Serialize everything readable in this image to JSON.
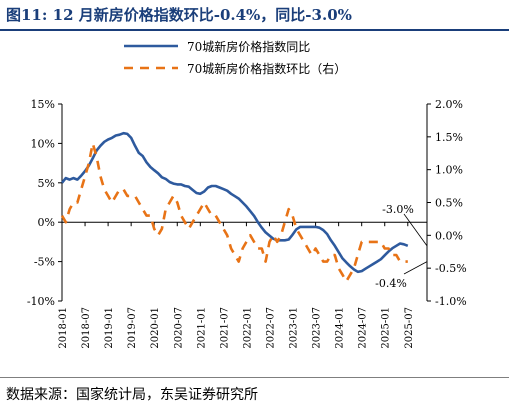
{
  "figure": {
    "title": "图11:   12 月新房价格指数环比-0.4%，同比-3.0%",
    "source": "数据来源：国家统计局，东吴证券研究所"
  },
  "chart_data": {
    "type": "line",
    "x_tick_labels": [
      "2018-01",
      "2018-07",
      "2019-01",
      "2019-07",
      "2020-01",
      "2020-07",
      "2021-01",
      "2021-07",
      "2022-01",
      "2022-07",
      "2023-01",
      "2023-07",
      "2024-01",
      "2024-07",
      "2025-01",
      "2025-07"
    ],
    "x_range": [
      "2018-01",
      "2025-12"
    ],
    "y_left": {
      "range": [
        -10,
        15
      ],
      "ticks": [
        15,
        10,
        5,
        0,
        -5,
        -10
      ],
      "tick_labels": [
        "15%",
        "10%",
        "5%",
        "0%",
        "-5%",
        "-10%"
      ]
    },
    "y_right": {
      "range": [
        -1.0,
        2.0
      ],
      "ticks": [
        2.0,
        1.5,
        1.0,
        0.5,
        0.0,
        -0.5,
        -1.0
      ],
      "tick_labels": [
        "2.0%",
        "1.5%",
        "1.0%",
        "0.5%",
        "0.0%",
        "-0.5%",
        "-1.0%"
      ]
    },
    "legend": {
      "placement": "top-center"
    },
    "grid": false,
    "annotations": [
      {
        "text": "-3.0%",
        "points_to": "2025-12",
        "axis": "left",
        "value": -3.0
      },
      {
        "text": "-0.4%",
        "points_to": "2025-12",
        "axis": "right",
        "value": -0.4
      }
    ],
    "series": [
      {
        "name": "70城新房价格指数同比",
        "axis": "left",
        "color": "#2e5a9e",
        "style": "solid",
        "start": "2018-01",
        "values": [
          5.0,
          5.6,
          5.4,
          5.6,
          5.4,
          5.9,
          6.5,
          7.2,
          8.1,
          9.1,
          9.7,
          10.2,
          10.5,
          10.7,
          11.0,
          11.1,
          11.3,
          11.2,
          10.7,
          9.7,
          8.8,
          8.4,
          7.6,
          7.0,
          6.6,
          6.2,
          5.7,
          5.5,
          5.1,
          4.9,
          4.8,
          4.8,
          4.6,
          4.5,
          4.1,
          3.7,
          3.6,
          3.9,
          4.4,
          4.6,
          4.6,
          4.4,
          4.2,
          4.0,
          3.6,
          3.3,
          3.0,
          2.5,
          2.0,
          1.4,
          0.8,
          0.0,
          -0.7,
          -1.3,
          -1.7,
          -2.1,
          -2.3,
          -2.3,
          -2.3,
          -2.2,
          -1.6,
          -0.9,
          -0.6,
          -0.6,
          -0.6,
          -0.6,
          -0.6,
          -0.7,
          -1.0,
          -1.5,
          -2.3,
          -3.0,
          -3.8,
          -4.6,
          -5.1,
          -5.6,
          -6.0,
          -6.3,
          -6.2,
          -5.9,
          -5.6,
          -5.3,
          -5.0,
          -4.7,
          -4.2,
          -3.7,
          -3.3,
          -3.0,
          -2.7,
          -2.8,
          -3.0
        ]
      },
      {
        "name": "70城新房价格指数环比（右）",
        "axis": "right",
        "color": "#e87316",
        "style": "dashed",
        "start": "2018-01",
        "values": [
          0.3,
          0.2,
          0.4,
          0.5,
          0.5,
          0.7,
          0.9,
          1.1,
          1.4,
          1.2,
          0.9,
          0.7,
          0.6,
          0.5,
          0.6,
          0.7,
          0.7,
          0.6,
          0.6,
          0.6,
          0.5,
          0.4,
          0.3,
          0.3,
          0.1,
          0.0,
          0.1,
          0.4,
          0.5,
          0.6,
          0.5,
          0.3,
          0.2,
          0.1,
          0.2,
          0.3,
          0.4,
          0.5,
          0.4,
          0.3,
          0.3,
          0.2,
          0.1,
          0.0,
          -0.2,
          -0.3,
          -0.4,
          -0.2,
          -0.1,
          0.0,
          -0.1,
          -0.2,
          -0.2,
          -0.4,
          -0.1,
          0.0,
          -0.1,
          0.0,
          0.2,
          0.4,
          0.3,
          0.1,
          0.0,
          -0.1,
          -0.2,
          -0.3,
          -0.2,
          -0.3,
          -0.4,
          -0.4,
          -0.3,
          -0.3,
          -0.5,
          -0.6,
          -0.7,
          -0.6,
          -0.5,
          -0.3,
          -0.1,
          -0.1,
          -0.1,
          -0.1,
          -0.1,
          -0.1,
          -0.2,
          -0.2,
          -0.3,
          -0.3,
          -0.4,
          -0.4,
          -0.4
        ]
      }
    ]
  }
}
